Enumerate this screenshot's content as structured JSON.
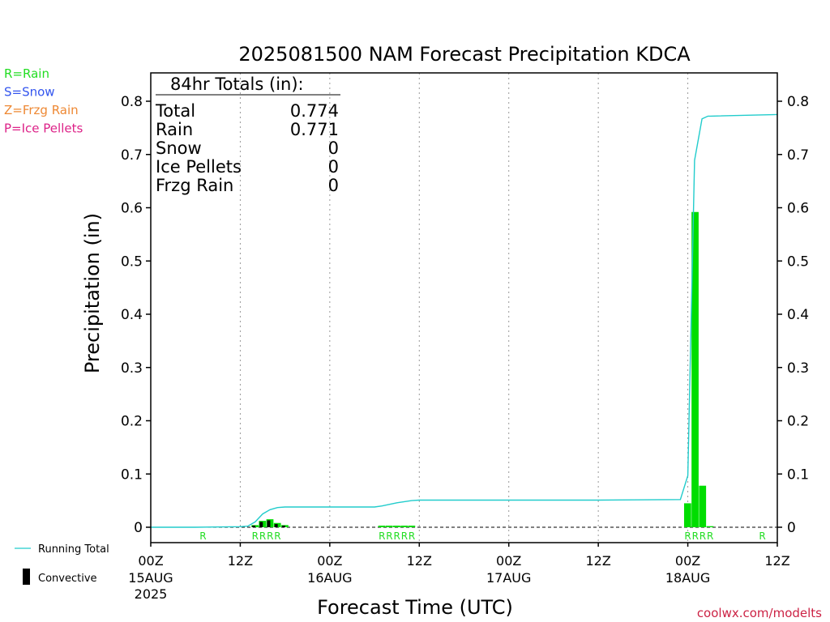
{
  "chart_data": {
    "type": "bar",
    "title": "2025081500 NAM Forecast Precipitation KDCA",
    "ylabel": "Precipitation (in)",
    "xlabel": "Forecast Time (UTC)",
    "ylim": [
      0,
      0.85
    ],
    "yticks": [
      0,
      0.1,
      0.2,
      0.3,
      0.4,
      0.5,
      0.6,
      0.7,
      0.8
    ],
    "ytick_labels": [
      "0",
      "0.1",
      "0.2",
      "0.3",
      "0.4",
      "0.5",
      "0.6",
      "0.7",
      "0.8"
    ],
    "x_range_hours": [
      0,
      84
    ],
    "xticks": [
      {
        "hour": 0,
        "line1": "00Z",
        "line2": "15AUG",
        "line3": "2025"
      },
      {
        "hour": 12,
        "line1": "12Z",
        "line2": "",
        "line3": ""
      },
      {
        "hour": 24,
        "line1": "00Z",
        "line2": "16AUG",
        "line3": ""
      },
      {
        "hour": 36,
        "line1": "12Z",
        "line2": "",
        "line3": ""
      },
      {
        "hour": 48,
        "line1": "00Z",
        "line2": "17AUG",
        "line3": ""
      },
      {
        "hour": 60,
        "line1": "12Z",
        "line2": "",
        "line3": ""
      },
      {
        "hour": 72,
        "line1": "00Z",
        "line2": "18AUG",
        "line3": ""
      },
      {
        "hour": 84,
        "line1": "12Z",
        "line2": "",
        "line3": ""
      }
    ],
    "grid": "vertical dotted at each 12Z/00Z tick",
    "hourly_precip": [
      {
        "hour": 14,
        "total": 0.004,
        "convective": 0.003
      },
      {
        "hour": 15,
        "total": 0.012,
        "convective": 0.01
      },
      {
        "hour": 16,
        "total": 0.015,
        "convective": 0.013
      },
      {
        "hour": 17,
        "total": 0.008,
        "convective": 0.006
      },
      {
        "hour": 18,
        "total": 0.004,
        "convective": 0.003
      },
      {
        "hour": 31,
        "total": 0.003,
        "convective": 0
      },
      {
        "hour": 32,
        "total": 0.003,
        "convective": 0
      },
      {
        "hour": 33,
        "total": 0.003,
        "convective": 0
      },
      {
        "hour": 34,
        "total": 0.003,
        "convective": 0
      },
      {
        "hour": 35,
        "total": 0.003,
        "convective": 0
      },
      {
        "hour": 72,
        "total": 0.045,
        "convective": 0
      },
      {
        "hour": 73,
        "total": 0.592,
        "convective": 0
      },
      {
        "hour": 74,
        "total": 0.078,
        "convective": 0
      },
      {
        "hour": 75,
        "total": 0.002,
        "convective": 0
      }
    ],
    "running_total": [
      [
        0,
        0
      ],
      [
        6,
        0
      ],
      [
        12,
        0.001
      ],
      [
        13,
        0.002
      ],
      [
        14,
        0.01
      ],
      [
        15,
        0.025
      ],
      [
        16,
        0.033
      ],
      [
        17,
        0.037
      ],
      [
        18,
        0.038
      ],
      [
        30,
        0.038
      ],
      [
        31,
        0.04
      ],
      [
        33,
        0.046
      ],
      [
        35,
        0.05
      ],
      [
        36,
        0.051
      ],
      [
        48,
        0.051
      ],
      [
        60,
        0.051
      ],
      [
        71,
        0.052
      ],
      [
        72,
        0.097
      ],
      [
        72.9,
        0.689
      ],
      [
        73.9,
        0.767
      ],
      [
        74.7,
        0.772
      ],
      [
        75,
        0.772
      ],
      [
        84,
        0.775
      ]
    ],
    "ptype_marks": [
      {
        "hour": 7,
        "label": "R"
      },
      {
        "hour": 14,
        "label": "R"
      },
      {
        "hour": 15,
        "label": "R"
      },
      {
        "hour": 16,
        "label": "R"
      },
      {
        "hour": 17,
        "label": "R"
      },
      {
        "hour": 31,
        "label": "R"
      },
      {
        "hour": 32,
        "label": "R"
      },
      {
        "hour": 33,
        "label": "R"
      },
      {
        "hour": 34,
        "label": "R"
      },
      {
        "hour": 35,
        "label": "R"
      },
      {
        "hour": 72,
        "label": "R"
      },
      {
        "hour": 73,
        "label": "R"
      },
      {
        "hour": 74,
        "label": "R"
      },
      {
        "hour": 75,
        "label": "R"
      },
      {
        "hour": 82,
        "label": "R"
      }
    ],
    "totals_box": {
      "heading": "84hr Totals (in):",
      "rows": [
        {
          "label": "Total",
          "value": "0.774"
        },
        {
          "label": "Rain",
          "value": "0.771"
        },
        {
          "label": "Snow",
          "value": "0"
        },
        {
          "label": "Ice Pellets",
          "value": "0"
        },
        {
          "label": "Frzg Rain",
          "value": "0"
        }
      ]
    },
    "ptype_legend": [
      {
        "label": "R=Rain",
        "color": "#22dd22"
      },
      {
        "label": "S=Snow",
        "color": "#3355ee"
      },
      {
        "label": "Z=Frzg Rain",
        "color": "#ee8833"
      },
      {
        "label": "P=Ice Pellets",
        "color": "#dd2288"
      }
    ],
    "series_legend": [
      {
        "label": "Running Total",
        "color": "#22cccc"
      },
      {
        "label": "Convective",
        "color": "#000000"
      }
    ],
    "colors": {
      "precip_bar": "#00dd00",
      "convective_bar": "#000000",
      "running_total": "#22cccc",
      "ptype_mark": "#22dd22"
    },
    "credit": "coolwx.com/modelts"
  }
}
